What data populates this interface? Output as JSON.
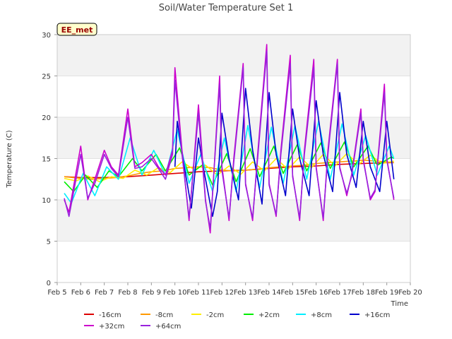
{
  "chart_data": {
    "type": "line",
    "title": "Soil/Water Temperature Set 1",
    "xlabel": "Time",
    "ylabel": "Temperature (C)",
    "annotation": "EE_met",
    "ylim": [
      0,
      30
    ],
    "yticks": [
      0,
      5,
      10,
      15,
      20,
      25,
      30
    ],
    "xlim": [
      5,
      20
    ],
    "xticks": [
      5,
      6,
      7,
      8,
      9,
      10,
      11,
      12,
      13,
      14,
      15,
      16,
      17,
      18,
      19,
      20
    ],
    "xticklabels": [
      "Feb 5",
      "Feb 6",
      "Feb 7",
      "Feb 8",
      "Feb 9",
      "Feb 10",
      "Feb 11",
      "Feb 12",
      "Feb 13",
      "Feb 14",
      "Feb 15",
      "Feb 16",
      "Feb 17",
      "Feb 18",
      "Feb 19",
      "Feb 20"
    ],
    "x_units": "day of February",
    "grid": "horizontal bands",
    "legend_position": "bottom",
    "series": [
      {
        "name": "-16cm",
        "color": "#dd0000",
        "x": [
          5.3,
          6,
          7,
          8,
          9,
          10,
          11,
          12,
          13,
          14,
          15,
          16,
          17,
          18,
          19,
          19.3
        ],
        "y": [
          12.8,
          12.7,
          12.7,
          12.8,
          13.0,
          13.2,
          13.4,
          13.5,
          13.6,
          13.8,
          14.0,
          14.1,
          14.3,
          14.4,
          14.5,
          14.5
        ]
      },
      {
        "name": "-8cm",
        "color": "#ff9900",
        "x": [
          5.3,
          6,
          6.5,
          7,
          7.5,
          8,
          8.5,
          9,
          9.5,
          10,
          10.5,
          11,
          11.5,
          12,
          12.5,
          13,
          13.5,
          14,
          14.5,
          15,
          15.5,
          16,
          16.5,
          17,
          17.5,
          18,
          18.5,
          19,
          19.3
        ],
        "y": [
          12.8,
          12.6,
          12.5,
          12.6,
          12.7,
          12.9,
          13.2,
          13.4,
          13.5,
          13.8,
          13.9,
          14.0,
          13.9,
          13.6,
          13.5,
          13.6,
          13.7,
          13.9,
          14.0,
          14.1,
          14.2,
          14.4,
          14.5,
          14.6,
          14.7,
          14.8,
          14.7,
          14.6,
          14.5
        ]
      },
      {
        "name": "-2cm",
        "color": "#ffee00",
        "x": [
          5.3,
          5.8,
          6.3,
          6.8,
          7.3,
          7.8,
          8.3,
          8.8,
          9.3,
          9.8,
          10.3,
          10.8,
          11.3,
          11.8,
          12.3,
          12.8,
          13.3,
          13.8,
          14.3,
          14.8,
          15.3,
          15.8,
          16.3,
          16.8,
          17.3,
          17.8,
          18.3,
          18.8,
          19.3
        ],
        "y": [
          12.6,
          12.3,
          12.9,
          12.2,
          12.8,
          12.6,
          13.6,
          13.0,
          13.9,
          13.3,
          14.6,
          13.7,
          14.2,
          13.0,
          14.1,
          13.1,
          14.6,
          13.5,
          15.0,
          13.7,
          15.2,
          13.9,
          15.5,
          14.1,
          15.6,
          14.3,
          15.4,
          14.4,
          14.7
        ]
      },
      {
        "name": "+2cm",
        "color": "#00ee00",
        "x": [
          5.3,
          5.7,
          6.2,
          6.7,
          7.2,
          7.6,
          8.2,
          8.6,
          9.2,
          9.6,
          10.2,
          10.6,
          11.2,
          11.6,
          12.2,
          12.6,
          13.2,
          13.6,
          14.2,
          14.6,
          15.2,
          15.6,
          16.2,
          16.6,
          17.2,
          17.6,
          18.2,
          18.6,
          19.2,
          19.3
        ],
        "y": [
          12.2,
          11.0,
          13.0,
          11.5,
          13.5,
          12.8,
          15.0,
          13.5,
          15.5,
          13.5,
          16.3,
          13.0,
          14.3,
          11.8,
          15.6,
          12.2,
          16.2,
          12.8,
          16.5,
          13.2,
          16.7,
          13.5,
          16.9,
          13.8,
          17.0,
          14.0,
          16.5,
          14.2,
          15.2,
          15.0
        ]
      },
      {
        "name": "+8cm",
        "color": "#00eeff",
        "x": [
          5.3,
          5.6,
          6.1,
          6.6,
          7.1,
          7.6,
          8.1,
          8.6,
          9.1,
          9.6,
          10.1,
          10.6,
          11.1,
          11.6,
          12.1,
          12.6,
          13.1,
          13.6,
          14.1,
          14.6,
          15.1,
          15.6,
          16.1,
          16.6,
          17.1,
          17.6,
          18.1,
          18.6,
          19.1,
          19.3
        ],
        "y": [
          10.8,
          9.6,
          13.2,
          10.5,
          14.0,
          12.5,
          17.5,
          13.0,
          16.0,
          13.0,
          18.5,
          12.0,
          15.5,
          11.0,
          17.5,
          11.0,
          19.0,
          11.5,
          18.8,
          12.0,
          19.0,
          12.5,
          19.5,
          12.5,
          19.2,
          13.0,
          17.8,
          13.0,
          16.5,
          15.0
        ]
      },
      {
        "name": "+16cm",
        "color": "#0000cc",
        "x": [
          10.0,
          10.1,
          10.4,
          10.7,
          11.0,
          11.2,
          11.6,
          11.8,
          12.0,
          12.3,
          12.7,
          13.0,
          13.3,
          13.7,
          14.0,
          14.3,
          14.7,
          15.0,
          15.3,
          15.7,
          16.0,
          16.3,
          16.7,
          17.0,
          17.3,
          17.7,
          18.0,
          18.3,
          18.7,
          19.0,
          19.3
        ],
        "y": [
          14.0,
          19.5,
          14.0,
          9.0,
          17.5,
          14.0,
          8.0,
          11.0,
          20.5,
          15.0,
          10.0,
          23.5,
          16.0,
          9.5,
          23.0,
          15.5,
          10.5,
          21.0,
          15.0,
          10.5,
          22.0,
          15.5,
          11.0,
          23.0,
          15.5,
          11.5,
          19.5,
          14.0,
          11.0,
          19.5,
          12.5
        ]
      },
      {
        "name": "+32cm",
        "color": "#cc00cc",
        "x": [
          5.3,
          5.5,
          6.0,
          6.3,
          6.6,
          7.0,
          7.3,
          7.6,
          8.0,
          8.3,
          8.6,
          9.0,
          9.3,
          9.6,
          9.9,
          10.0,
          10.3,
          10.6,
          11.0,
          11.3,
          11.5,
          11.9,
          12.0,
          12.3,
          12.5,
          12.9,
          13.0,
          13.3,
          13.5,
          13.9,
          14.0,
          14.3,
          14.5,
          14.9,
          15.0,
          15.3,
          15.5,
          15.9,
          16.0,
          16.3,
          16.5,
          16.9,
          17.0,
          17.3,
          17.5,
          17.9,
          18.0,
          18.3,
          18.5,
          18.9,
          19.0,
          19.3
        ],
        "y": [
          10.0,
          8.5,
          16.5,
          10.0,
          12.5,
          16.0,
          14.0,
          13.0,
          21.0,
          14.0,
          14.5,
          15.5,
          14.0,
          13.0,
          16.0,
          26.0,
          16.0,
          7.5,
          21.5,
          10.0,
          6.0,
          25.0,
          14.0,
          7.5,
          15.0,
          26.5,
          12.0,
          7.5,
          15.0,
          28.8,
          12.0,
          8.0,
          16.0,
          27.5,
          13.0,
          7.5,
          16.0,
          27.0,
          14.0,
          7.5,
          16.0,
          27.0,
          14.0,
          10.5,
          13.0,
          21.0,
          15.0,
          10.0,
          11.0,
          24.0,
          15.0,
          10.0
        ]
      },
      {
        "name": "+64cm",
        "color": "#9922dd",
        "x": [
          5.3,
          5.5,
          6.0,
          6.3,
          6.6,
          7.0,
          7.3,
          7.6,
          8.0,
          8.3,
          8.6,
          9.0,
          9.3,
          9.6,
          9.9,
          10.0,
          10.3,
          10.6,
          11.0,
          11.3,
          11.5,
          11.9,
          12.0,
          12.3,
          12.5,
          12.9,
          13.0,
          13.3,
          13.5,
          13.9,
          14.0,
          14.3,
          14.5,
          14.9,
          15.0,
          15.3,
          15.5,
          15.9,
          16.0,
          16.3,
          16.5,
          16.9,
          17.0,
          17.3,
          17.5,
          17.9,
          18.0,
          18.3,
          18.5,
          18.9,
          19.0,
          19.3
        ],
        "y": [
          10.2,
          8.0,
          15.5,
          10.2,
          12.0,
          15.5,
          13.8,
          12.8,
          20.0,
          13.8,
          14.0,
          15.0,
          13.8,
          12.5,
          15.5,
          24.5,
          15.5,
          7.8,
          20.5,
          9.8,
          6.5,
          24.0,
          13.5,
          7.8,
          14.5,
          26.0,
          11.8,
          7.8,
          14.5,
          28.0,
          11.8,
          8.2,
          15.5,
          26.5,
          12.8,
          7.8,
          15.5,
          26.0,
          13.8,
          7.8,
          15.5,
          26.5,
          13.8,
          10.8,
          12.8,
          20.5,
          14.8,
          10.2,
          11.2,
          23.0,
          14.8,
          10.2
        ]
      }
    ]
  }
}
